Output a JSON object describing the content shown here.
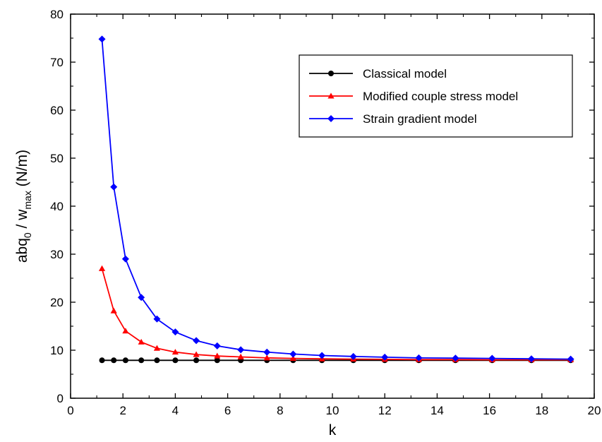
{
  "chart_data": {
    "type": "line",
    "title": "",
    "xlabel": "k",
    "ylabel": {
      "parts": [
        "abq",
        "0",
        " / w",
        "max",
        " (N/m)"
      ]
    },
    "xlim": [
      0,
      20
    ],
    "ylim": [
      0,
      80
    ],
    "x_ticks": [
      "0",
      "2",
      "4",
      "6",
      "8",
      "10",
      "12",
      "14",
      "16",
      "18",
      "20"
    ],
    "y_ticks": [
      "0",
      "10",
      "20",
      "30",
      "40",
      "50",
      "60",
      "70",
      "80"
    ],
    "grid": false,
    "legend_position": "top-right",
    "x": [
      1.2,
      1.65,
      2.1,
      2.7,
      3.3,
      4.0,
      4.8,
      5.6,
      6.5,
      7.5,
      8.5,
      9.6,
      10.8,
      12.0,
      13.3,
      14.7,
      16.1,
      17.6,
      19.1
    ],
    "series": [
      {
        "name": "Classical model",
        "color": "#000000",
        "marker": "circle",
        "values": [
          7.9,
          7.9,
          7.9,
          7.9,
          7.9,
          7.9,
          7.9,
          7.9,
          7.9,
          7.9,
          7.9,
          7.9,
          7.9,
          7.9,
          7.9,
          7.9,
          7.9,
          7.9,
          7.9
        ]
      },
      {
        "name": "Modified couple stress model",
        "color": "#ff0000",
        "marker": "triangle",
        "values": [
          27.0,
          18.2,
          14.0,
          11.7,
          10.4,
          9.6,
          9.1,
          8.8,
          8.6,
          8.4,
          8.3,
          8.2,
          8.15,
          8.1,
          8.05,
          8.05,
          8.0,
          8.0,
          8.0
        ]
      },
      {
        "name": "Strain gradient model",
        "color": "#0000ff",
        "marker": "diamond",
        "values": [
          74.8,
          44.0,
          29.0,
          21.0,
          16.5,
          13.8,
          12.0,
          10.9,
          10.1,
          9.6,
          9.2,
          8.9,
          8.7,
          8.55,
          8.4,
          8.35,
          8.3,
          8.2,
          8.15
        ]
      }
    ]
  }
}
